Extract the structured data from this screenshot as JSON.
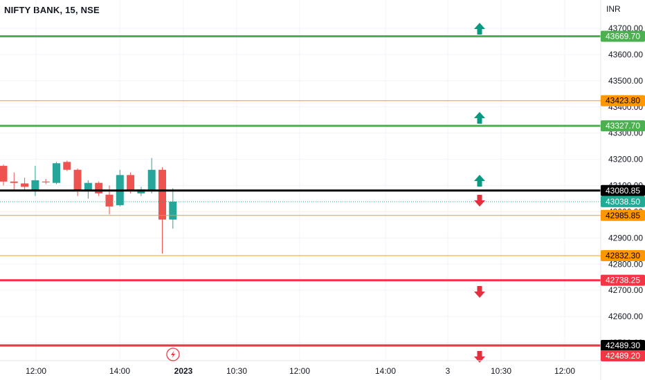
{
  "header": {
    "symbol_title": "NIFTY BANK, 15, NSE",
    "currency": "INR"
  },
  "colors": {
    "bull": "#26a69a",
    "bear": "#ef5350",
    "resistance": "#4caf50",
    "support": "#f23645",
    "pivot": "#000000",
    "level": "#ff9800",
    "last_price": "#22ab94",
    "arrow_up": "#089981",
    "arrow_down": "#e0323e"
  },
  "chart_data": {
    "type": "candlestick",
    "title": "NIFTY BANK, 15, NSE",
    "y_unit": "INR",
    "ylim": [
      42440,
      43760
    ],
    "y_ticks": [
      43700,
      43600,
      43500,
      43400,
      43300,
      43200,
      43100,
      43000,
      42900,
      42800,
      42700,
      42600,
      42500
    ],
    "y_tick_labels": [
      "43700.00",
      "43600.00",
      "43500.00",
      "43400.00",
      "43300.00",
      "43200.00",
      "43100.00",
      "43000.00",
      "42900.00",
      "42800.00",
      "42700.00",
      "42600.00",
      "42500.00"
    ],
    "x_ticks": [
      "12:00",
      "14:00",
      "2023",
      "10:30",
      "12:00",
      "14:00",
      "3",
      "10:30",
      "12:00"
    ],
    "candles": [
      {
        "o": 43175,
        "h": 43180,
        "l": 43100,
        "c": 43115
      },
      {
        "o": 43115,
        "h": 43150,
        "l": 43085,
        "c": 43110
      },
      {
        "o": 43108,
        "h": 43130,
        "l": 43080,
        "c": 43095
      },
      {
        "o": 43080,
        "h": 43175,
        "l": 43060,
        "c": 43120
      },
      {
        "o": 43115,
        "h": 43125,
        "l": 43105,
        "c": 43112
      },
      {
        "o": 43110,
        "h": 43190,
        "l": 43105,
        "c": 43185
      },
      {
        "o": 43190,
        "h": 43195,
        "l": 43155,
        "c": 43160
      },
      {
        "o": 43160,
        "h": 43165,
        "l": 43060,
        "c": 43080
      },
      {
        "o": 43080,
        "h": 43120,
        "l": 43050,
        "c": 43110
      },
      {
        "o": 43110,
        "h": 43115,
        "l": 43060,
        "c": 43070
      },
      {
        "o": 43065,
        "h": 43100,
        "l": 42990,
        "c": 43020
      },
      {
        "o": 43025,
        "h": 43160,
        "l": 43020,
        "c": 43140
      },
      {
        "o": 43140,
        "h": 43150,
        "l": 43070,
        "c": 43080
      },
      {
        "o": 43070,
        "h": 43095,
        "l": 43060,
        "c": 43085
      },
      {
        "o": 43080,
        "h": 43205,
        "l": 43070,
        "c": 43160
      },
      {
        "o": 43160,
        "h": 43170,
        "l": 42840,
        "c": 42970
      },
      {
        "o": 42970,
        "h": 43090,
        "l": 42935,
        "c": 43038.5
      }
    ],
    "levels": [
      {
        "price": 43669.7,
        "label": "43669.70",
        "kind": "resistance",
        "arrow": "up"
      },
      {
        "price": 43423.8,
        "label": "43423.80",
        "kind": "level",
        "arrow": "none"
      },
      {
        "price": 43327.7,
        "label": "43327.70",
        "kind": "resistance",
        "arrow": "up"
      },
      {
        "price": 43080.85,
        "label": "43080.85",
        "kind": "pivot",
        "arrow": "up"
      },
      {
        "price": 43038.5,
        "label": "43038.50",
        "kind": "last_price",
        "arrow": "down"
      },
      {
        "price": 42985.85,
        "label": "42985.85",
        "kind": "level",
        "arrow": "none"
      },
      {
        "price": 42832.3,
        "label": "42832.30",
        "kind": "level",
        "arrow": "none"
      },
      {
        "price": 42738.25,
        "label": "42738.25",
        "kind": "support",
        "arrow": "down"
      },
      {
        "price": 42489.3,
        "label": "42489.30",
        "kind": "pivot",
        "arrow": "none"
      },
      {
        "price": 42489.2,
        "label": "42489.20",
        "kind": "support",
        "arrow": "down"
      }
    ]
  }
}
